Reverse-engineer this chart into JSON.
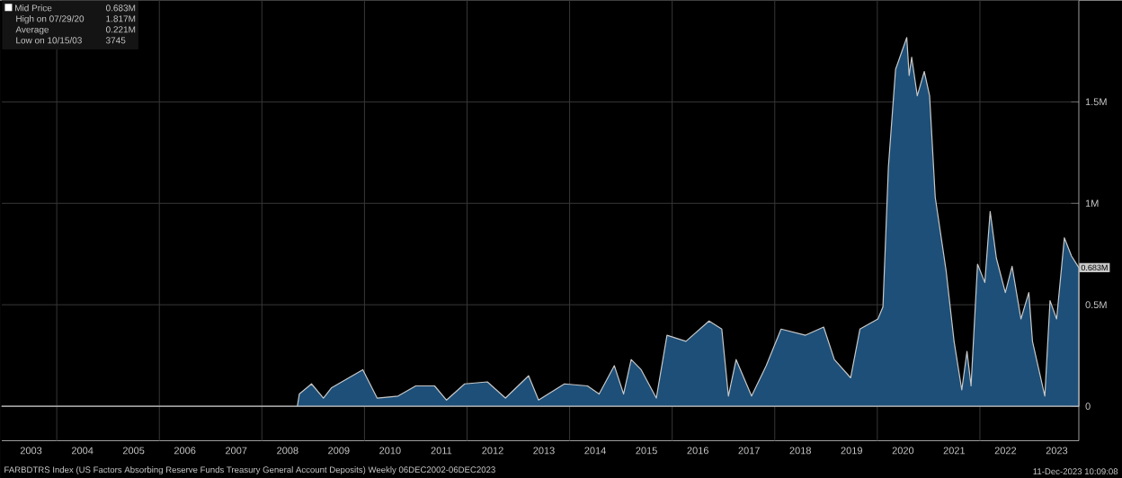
{
  "chart_data": {
    "type": "area",
    "legend": "top left",
    "grid": true,
    "xlim": [
      "2002-12-06",
      "2023-12-06"
    ],
    "xticks": [
      {
        "value": "2003-07-02",
        "label": "2003"
      },
      {
        "value": "2004-07-02",
        "label": "2004"
      },
      {
        "value": "2005-07-02",
        "label": "2005"
      },
      {
        "value": "2006-07-02",
        "label": "2006"
      },
      {
        "value": "2007-07-02",
        "label": "2007"
      },
      {
        "value": "2008-07-02",
        "label": "2008"
      },
      {
        "value": "2009-07-02",
        "label": "2009"
      },
      {
        "value": "2010-07-02",
        "label": "2010"
      },
      {
        "value": "2011-07-02",
        "label": "2011"
      },
      {
        "value": "2012-07-02",
        "label": "2012"
      },
      {
        "value": "2013-07-02",
        "label": "2013"
      },
      {
        "value": "2014-07-02",
        "label": "2014"
      },
      {
        "value": "2015-07-02",
        "label": "2015"
      },
      {
        "value": "2016-07-02",
        "label": "2016"
      },
      {
        "value": "2017-07-02",
        "label": "2017"
      },
      {
        "value": "2018-07-02",
        "label": "2018"
      },
      {
        "value": "2019-07-02",
        "label": "2019"
      },
      {
        "value": "2020-07-02",
        "label": "2020"
      },
      {
        "value": "2021-07-02",
        "label": "2021"
      },
      {
        "value": "2022-07-02",
        "label": "2022"
      },
      {
        "value": "2023-07-02",
        "label": "2023"
      },
      {
        "value": "2004-01-01",
        "label": null
      },
      {
        "value": "2006-01-01",
        "label": null
      },
      {
        "value": "2008-01-01",
        "label": null
      },
      {
        "value": "2010-01-01",
        "label": null
      },
      {
        "value": "2012-01-01",
        "label": null
      },
      {
        "value": "2014-01-01",
        "label": null
      },
      {
        "value": "2016-01-01",
        "label": null
      },
      {
        "value": "2018-01-01",
        "label": null
      },
      {
        "value": "2020-01-01",
        "label": null
      },
      {
        "value": "2022-01-01",
        "label": null
      }
    ],
    "ylim": [
      -0.17,
      2.0
    ],
    "yticks": [
      0,
      {
        "value": 0.5,
        "label": "0.5M"
      },
      {
        "value": 1,
        "label": "1M"
      },
      {
        "value": 1.5,
        "label": "1.5M"
      }
    ],
    "series": [
      {
        "name": "Mid Price",
        "color": "#1d4f78",
        "x": [
          "2002-12-06",
          "2003-10-15",
          "2005-06-01",
          "2007-06-01",
          "2008-09-10",
          "2008-09-24",
          "2008-12-20",
          "2009-03-15",
          "2009-05-10",
          "2009-12-20",
          "2010-04-01",
          "2010-08-28",
          "2011-01-01",
          "2011-05-15",
          "2011-08-08",
          "2011-12-15",
          "2012-05-25",
          "2012-10-01",
          "2013-03-15",
          "2013-05-25",
          "2013-11-25",
          "2014-05-08",
          "2014-07-30",
          "2014-11-15",
          "2015-01-20",
          "2015-03-15",
          "2015-05-25",
          "2015-09-10",
          "2015-11-25",
          "2016-04-08",
          "2016-09-20",
          "2016-12-20",
          "2017-02-05",
          "2017-04-01",
          "2017-07-20",
          "2017-11-01",
          "2018-02-15",
          "2018-08-08",
          "2018-12-15",
          "2019-03-01",
          "2019-06-25",
          "2019-08-30",
          "2020-01-05",
          "2020-02-10",
          "2020-03-20",
          "2020-05-10",
          "2020-07-29",
          "2020-08-15",
          "2020-09-02",
          "2020-10-12",
          "2020-12-01",
          "2021-01-08",
          "2021-02-17",
          "2021-05-05",
          "2021-07-01",
          "2021-08-25",
          "2021-10-01",
          "2021-10-30",
          "2021-12-15",
          "2022-02-05",
          "2022-03-15",
          "2022-04-28",
          "2022-07-01",
          "2022-08-18",
          "2022-10-20",
          "2022-12-15",
          "2023-01-10",
          "2023-04-08",
          "2023-05-15",
          "2023-07-01",
          "2023-08-25",
          "2023-10-15",
          "2023-12-06"
        ],
        "values": [
          0,
          0,
          0,
          0,
          0,
          0.06,
          0.11,
          0.04,
          0.09,
          0.18,
          0.04,
          0.05,
          0.1,
          0.1,
          0.03,
          0.11,
          0.12,
          0.04,
          0.15,
          0.03,
          0.11,
          0.1,
          0.06,
          0.2,
          0.06,
          0.23,
          0.18,
          0.04,
          0.35,
          0.32,
          0.42,
          0.38,
          0.05,
          0.23,
          0.05,
          0.2,
          0.38,
          0.35,
          0.39,
          0.23,
          0.14,
          0.38,
          0.43,
          0.49,
          1.18,
          1.66,
          1.817,
          1.63,
          1.72,
          1.53,
          1.65,
          1.53,
          1.03,
          0.67,
          0.32,
          0.08,
          0.27,
          0.1,
          0.7,
          0.61,
          0.96,
          0.73,
          0.56,
          0.69,
          0.43,
          0.56,
          0.32,
          0.05,
          0.52,
          0.43,
          0.83,
          0.74,
          0.683
        ]
      }
    ],
    "annotations": [
      {
        "text": "0.683M",
        "x": "2023-12-06",
        "y": 0.683
      },
      "0.683M",
      "High on 07/29/20",
      "1.817M",
      "Average",
      "0.221M",
      "Low on 10/15/03",
      "3745",
      "FARBDTRS Index (US Factors Absorbing Reserve Funds Treasury General Account Deposits)  Weekly 06DEC2002-06DEC2023",
      "11-Dec-2023 10:09:08"
    ]
  }
}
